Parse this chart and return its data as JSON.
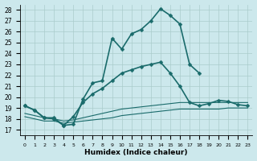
{
  "xlabel": "Humidex (Indice chaleur)",
  "ylabel": "",
  "background_color": "#cce8ec",
  "grid_color": "#aacccc",
  "line_color": "#1a6b6b",
  "xlim": [
    -0.5,
    23.5
  ],
  "ylim": [
    16.5,
    28.5
  ],
  "yticks": [
    17,
    18,
    19,
    20,
    21,
    22,
    23,
    24,
    25,
    26,
    27,
    28
  ],
  "xticks": [
    0,
    1,
    2,
    3,
    4,
    5,
    6,
    7,
    8,
    9,
    10,
    11,
    12,
    13,
    14,
    15,
    16,
    17,
    18,
    19,
    20,
    21,
    22,
    23
  ],
  "series": [
    {
      "x": [
        0,
        1,
        2,
        3,
        4,
        5,
        6,
        7,
        8,
        9,
        10,
        11,
        12,
        13,
        14,
        15,
        16,
        17,
        18,
        19,
        20,
        21,
        22,
        23
      ],
      "y": [
        19.2,
        18.8,
        18.1,
        18.1,
        17.4,
        17.5,
        19.8,
        21.3,
        21.5,
        25.4,
        24.4,
        25.8,
        26.2,
        27.0,
        28.1,
        27.5,
        26.7,
        23.0,
        22.2,
        null,
        null,
        null,
        null,
        null
      ],
      "has_markers": true,
      "markersize": 2.5,
      "linewidth": 1.2
    },
    {
      "x": [
        0,
        1,
        2,
        3,
        4,
        5,
        6,
        7,
        8,
        9,
        10,
        11,
        12,
        13,
        14,
        15,
        16,
        17,
        18,
        19,
        20,
        21,
        22,
        23
      ],
      "y": [
        19.2,
        18.8,
        18.1,
        18.0,
        17.4,
        18.2,
        19.5,
        20.3,
        20.8,
        21.5,
        22.2,
        22.5,
        22.8,
        23.0,
        23.2,
        22.2,
        21.0,
        19.5,
        19.2,
        19.4,
        19.7,
        19.6,
        19.3,
        19.2
      ],
      "has_markers": true,
      "markersize": 2.5,
      "linewidth": 1.2
    },
    {
      "x": [
        0,
        1,
        2,
        3,
        4,
        5,
        6,
        7,
        8,
        9,
        10,
        11,
        12,
        13,
        14,
        15,
        16,
        17,
        18,
        19,
        20,
        21,
        22,
        23
      ],
      "y": [
        18.5,
        18.3,
        18.1,
        18.0,
        17.8,
        17.9,
        18.1,
        18.3,
        18.5,
        18.7,
        18.9,
        19.0,
        19.1,
        19.2,
        19.3,
        19.4,
        19.5,
        19.5,
        19.5,
        19.5,
        19.5,
        19.5,
        19.5,
        19.5
      ],
      "has_markers": false,
      "markersize": 0,
      "linewidth": 0.8
    },
    {
      "x": [
        0,
        1,
        2,
        3,
        4,
        5,
        6,
        7,
        8,
        9,
        10,
        11,
        12,
        13,
        14,
        15,
        16,
        17,
        18,
        19,
        20,
        21,
        22,
        23
      ],
      "y": [
        18.2,
        18.0,
        17.8,
        17.8,
        17.6,
        17.7,
        17.8,
        17.9,
        18.0,
        18.1,
        18.3,
        18.4,
        18.5,
        18.6,
        18.7,
        18.8,
        18.9,
        18.9,
        18.9,
        18.9,
        18.9,
        19.0,
        19.0,
        19.0
      ],
      "has_markers": false,
      "markersize": 0,
      "linewidth": 0.8
    }
  ]
}
